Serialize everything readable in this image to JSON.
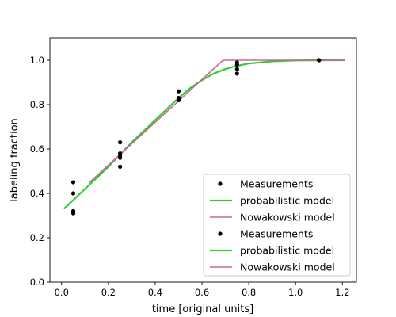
{
  "chart_data": {
    "type": "scatter",
    "xlabel": "time [original units]",
    "ylabel": "labeling fraction",
    "xlim": [
      -0.05,
      1.26
    ],
    "ylim": [
      0.0,
      1.1
    ],
    "xticks": [
      "0.0",
      "0.2",
      "0.4",
      "0.6",
      "0.8",
      "1.0",
      "1.2"
    ],
    "yticks": [
      "0.0",
      "0.2",
      "0.4",
      "0.6",
      "0.8",
      "1.0"
    ],
    "grid": false,
    "legend_placement": "lower-right",
    "colors": {
      "measurements": "#000000",
      "probabilistic": "#33cc33",
      "nowakowski": "#cc6699"
    },
    "series": [
      {
        "name": "Measurements",
        "kind": "scatter",
        "x": [
          0.05,
          0.05,
          0.05,
          0.05,
          0.25,
          0.25,
          0.25,
          0.25,
          0.25,
          0.5,
          0.5,
          0.5,
          0.5,
          0.75,
          0.75,
          0.75,
          0.75,
          1.1,
          1.1
        ],
        "y": [
          0.45,
          0.4,
          0.32,
          0.31,
          0.63,
          0.58,
          0.57,
          0.56,
          0.52,
          0.86,
          0.83,
          0.82,
          0.82,
          0.99,
          0.98,
          0.96,
          0.94,
          1.0,
          1.0
        ]
      },
      {
        "name": "probabilistic model",
        "kind": "line",
        "x": [
          0.01,
          0.1,
          0.2,
          0.3,
          0.4,
          0.5,
          0.55,
          0.6,
          0.65,
          0.7,
          0.75,
          0.8,
          0.9,
          1.0,
          1.1,
          1.21
        ],
        "y": [
          0.33,
          0.42,
          0.52,
          0.63,
          0.73,
          0.83,
          0.875,
          0.91,
          0.94,
          0.96,
          0.975,
          0.985,
          0.995,
          0.999,
          1.0,
          1.0
        ]
      },
      {
        "name": "Nowakowski model",
        "kind": "line",
        "x": [
          0.12,
          0.69,
          1.21
        ],
        "y": [
          0.45,
          1.0,
          1.0
        ]
      }
    ],
    "legend": [
      {
        "label": "Measurements",
        "kind": "marker",
        "color": "#000000"
      },
      {
        "label": "probabilistic model",
        "kind": "line",
        "color": "#33cc33"
      },
      {
        "label": "Nowakowski model",
        "kind": "line",
        "color": "#cc6699"
      },
      {
        "label": "Measurements",
        "kind": "marker",
        "color": "#000000"
      },
      {
        "label": "probabilistic model",
        "kind": "line",
        "color": "#33cc33"
      },
      {
        "label": "Nowakowski model",
        "kind": "line",
        "color": "#cc6699"
      }
    ]
  }
}
